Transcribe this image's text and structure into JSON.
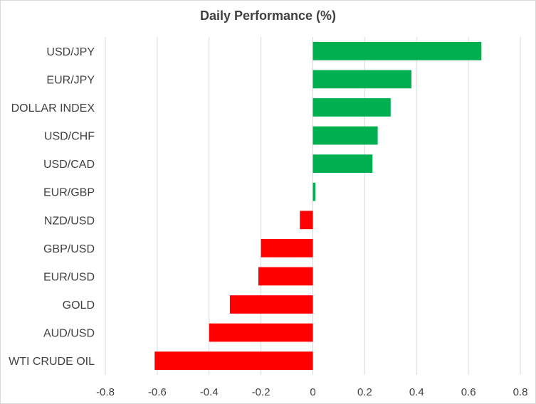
{
  "chart_data": {
    "type": "bar",
    "orientation": "horizontal",
    "title": "Daily Performance (%)",
    "categories": [
      "USD/JPY",
      "EUR/JPY",
      "DOLLAR INDEX",
      "USD/CHF",
      "USD/CAD",
      "EUR/GBP",
      "NZD/USD",
      "GBP/USD",
      "EUR/USD",
      "GOLD",
      "AUD/USD",
      "WTI CRUDE OIL"
    ],
    "values": [
      0.65,
      0.38,
      0.3,
      0.25,
      0.23,
      0.01,
      -0.05,
      -0.2,
      -0.21,
      -0.32,
      -0.4,
      -0.61
    ],
    "xlim": [
      -0.8,
      0.8
    ],
    "xticks": [
      "-0.8",
      "-0.6",
      "-0.4",
      "-0.2",
      "0",
      "0.2",
      "0.4",
      "0.6",
      "0.8"
    ],
    "xtick_values": [
      -0.8,
      -0.6,
      -0.4,
      -0.2,
      0,
      0.2,
      0.4,
      0.6,
      0.8
    ],
    "grid": true,
    "legend": "none",
    "colors": {
      "positive": "#00b050",
      "negative": "#ff0000",
      "grid": "#d9d9d9",
      "text": "#404040"
    }
  }
}
